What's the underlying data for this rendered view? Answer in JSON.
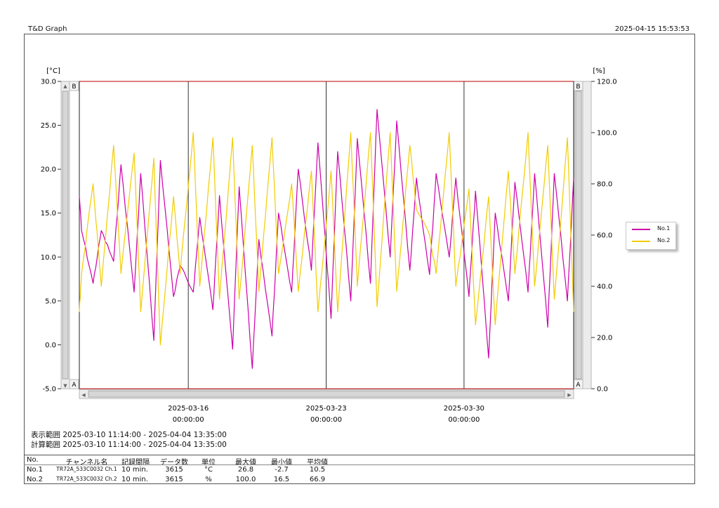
{
  "header": {
    "app_title": "T&D Graph",
    "printed_at": "2025-04-15 15:53:53"
  },
  "colors": {
    "series1": "#cc00aa",
    "series2": "#f2cc00",
    "limit_line": "#cc3333",
    "grid": "#333333"
  },
  "scrollbar_left": {
    "top_tag": "B",
    "bottom_tag": "A"
  },
  "scrollbar_right": {
    "top_tag": "B",
    "bottom_tag": "A"
  },
  "chart_data": {
    "type": "line",
    "x_range": [
      "2025-03-10 11:14",
      "2025-04-04 13:35"
    ],
    "x_ticks": [
      {
        "date": "2025-03-16",
        "time": "00:00:00"
      },
      {
        "date": "2025-03-23",
        "time": "00:00:00"
      },
      {
        "date": "2025-03-30",
        "time": "00:00:00"
      }
    ],
    "y_left": {
      "unit": "[°C]",
      "min": -5.0,
      "max": 30.0,
      "ticks": [
        "30.0",
        "25.0",
        "20.0",
        "15.0",
        "10.0",
        "5.0",
        "0.0",
        "-5.0"
      ]
    },
    "y_right": {
      "unit": "[%]",
      "min": 0.0,
      "max": 120.0,
      "ticks": [
        "120.0",
        "100.0",
        "80.0",
        "60.0",
        "40.0",
        "20.0",
        "0.0"
      ]
    },
    "grid": "vertical lines at x ticks",
    "legend_position": "right",
    "series": [
      {
        "name": "No.1",
        "axis": "left",
        "x": [
          "2025-03-10 11:14",
          "2025-03-10 14:00",
          "2025-03-11 04:00",
          "2025-03-11 14:00",
          "2025-03-12 05:00",
          "2025-03-12 14:00",
          "2025-03-13 06:00",
          "2025-03-13 14:00",
          "2025-03-14 06:00",
          "2025-03-14 14:00",
          "2025-03-15 06:00",
          "2025-03-15 14:00",
          "2025-03-16 06:00",
          "2025-03-16 14:00",
          "2025-03-17 06:00",
          "2025-03-17 14:00",
          "2025-03-18 06:00",
          "2025-03-18 14:00",
          "2025-03-19 06:00",
          "2025-03-19 14:00",
          "2025-03-20 06:00",
          "2025-03-20 14:00",
          "2025-03-21 06:00",
          "2025-03-21 14:00",
          "2025-03-22 06:00",
          "2025-03-22 14:00",
          "2025-03-23 06:00",
          "2025-03-23 14:00",
          "2025-03-24 06:00",
          "2025-03-24 14:00",
          "2025-03-25 06:00",
          "2025-03-25 14:00",
          "2025-03-26 06:00",
          "2025-03-26 14:00",
          "2025-03-27 06:00",
          "2025-03-27 14:00",
          "2025-03-28 06:00",
          "2025-03-28 14:00",
          "2025-03-29 06:00",
          "2025-03-29 14:00",
          "2025-03-30 06:00",
          "2025-03-30 14:00",
          "2025-03-31 06:00",
          "2025-03-31 14:00",
          "2025-04-01 06:00",
          "2025-04-01 14:00",
          "2025-04-02 06:00",
          "2025-04-02 14:00",
          "2025-04-03 06:00",
          "2025-04-03 14:00",
          "2025-04-04 06:00",
          "2025-04-04 13:35"
        ],
        "values": [
          17.0,
          13.0,
          7.0,
          13.0,
          9.5,
          20.5,
          6.0,
          19.5,
          0.5,
          21.0,
          5.5,
          9.0,
          6.0,
          14.5,
          4.0,
          17.0,
          -0.5,
          18.0,
          -2.7,
          12.0,
          1.0,
          15.0,
          6.0,
          20.0,
          8.5,
          23.0,
          3.0,
          22.0,
          5.0,
          23.5,
          7.0,
          26.8,
          10.0,
          25.5,
          8.5,
          19.0,
          8.0,
          19.5,
          10.0,
          19.0,
          5.5,
          17.5,
          -1.5,
          15.0,
          5.0,
          18.5,
          6.0,
          19.5,
          2.0,
          19.5,
          5.0,
          19.0
        ]
      },
      {
        "name": "No.2",
        "axis": "right",
        "x": [
          "2025-03-10 11:14",
          "2025-03-10 14:00",
          "2025-03-11 04:00",
          "2025-03-11 14:00",
          "2025-03-12 05:00",
          "2025-03-12 14:00",
          "2025-03-13 06:00",
          "2025-03-13 14:00",
          "2025-03-14 06:00",
          "2025-03-14 14:00",
          "2025-03-15 06:00",
          "2025-03-15 14:00",
          "2025-03-16 06:00",
          "2025-03-16 14:00",
          "2025-03-17 06:00",
          "2025-03-17 14:00",
          "2025-03-18 06:00",
          "2025-03-18 14:00",
          "2025-03-19 06:00",
          "2025-03-19 14:00",
          "2025-03-20 06:00",
          "2025-03-20 14:00",
          "2025-03-21 06:00",
          "2025-03-21 14:00",
          "2025-03-22 06:00",
          "2025-03-22 14:00",
          "2025-03-23 06:00",
          "2025-03-23 14:00",
          "2025-03-24 06:00",
          "2025-03-24 14:00",
          "2025-03-25 06:00",
          "2025-03-25 14:00",
          "2025-03-26 06:00",
          "2025-03-26 14:00",
          "2025-03-27 06:00",
          "2025-03-27 14:00",
          "2025-03-28 06:00",
          "2025-03-28 14:00",
          "2025-03-29 06:00",
          "2025-03-29 14:00",
          "2025-03-30 06:00",
          "2025-03-30 14:00",
          "2025-03-31 06:00",
          "2025-03-31 14:00",
          "2025-04-01 06:00",
          "2025-04-01 14:00",
          "2025-04-02 06:00",
          "2025-04-02 14:00",
          "2025-04-03 06:00",
          "2025-04-03 14:00",
          "2025-04-04 06:00",
          "2025-04-04 13:35"
        ],
        "values": [
          30.0,
          45.0,
          80.0,
          40.0,
          95.0,
          45.0,
          92.0,
          30.0,
          90.0,
          17.0,
          75.0,
          45.0,
          100.0,
          40.0,
          98.0,
          35.0,
          98.0,
          35.0,
          95.0,
          38.0,
          98.0,
          45.0,
          80.0,
          38.0,
          85.0,
          30.0,
          85.0,
          30.0,
          100.0,
          40.0,
          100.0,
          32.0,
          100.0,
          38.0,
          95.0,
          70.0,
          60.0,
          45.0,
          100.0,
          40.0,
          78.0,
          25.0,
          75.0,
          25.0,
          85.0,
          45.0,
          100.0,
          40.0,
          95.0,
          35.0,
          98.0,
          30.0
        ]
      }
    ]
  },
  "ranges": {
    "display_label": "表示範囲",
    "display_value": "2025-03-10 11:14:00 - 2025-04-04 13:35:00",
    "calc_label": "計算範囲",
    "calc_value": "2025-03-10 11:14:00 - 2025-04-04 13:35:00"
  },
  "stats": {
    "headers": [
      "No.",
      "チャンネル名",
      "記録間隔",
      "データ数",
      "単位",
      "最大値",
      "最小値",
      "平均値"
    ],
    "rows": [
      [
        "No.1",
        "TR72A_533C0032 Ch.1",
        "10 min.",
        "3615",
        "°C",
        "26.8",
        "-2.7",
        "10.5"
      ],
      [
        "No.2",
        "TR72A_533C0032 Ch.2",
        "10 min.",
        "3615",
        "%",
        "100.0",
        "16.5",
        "66.9"
      ]
    ]
  }
}
